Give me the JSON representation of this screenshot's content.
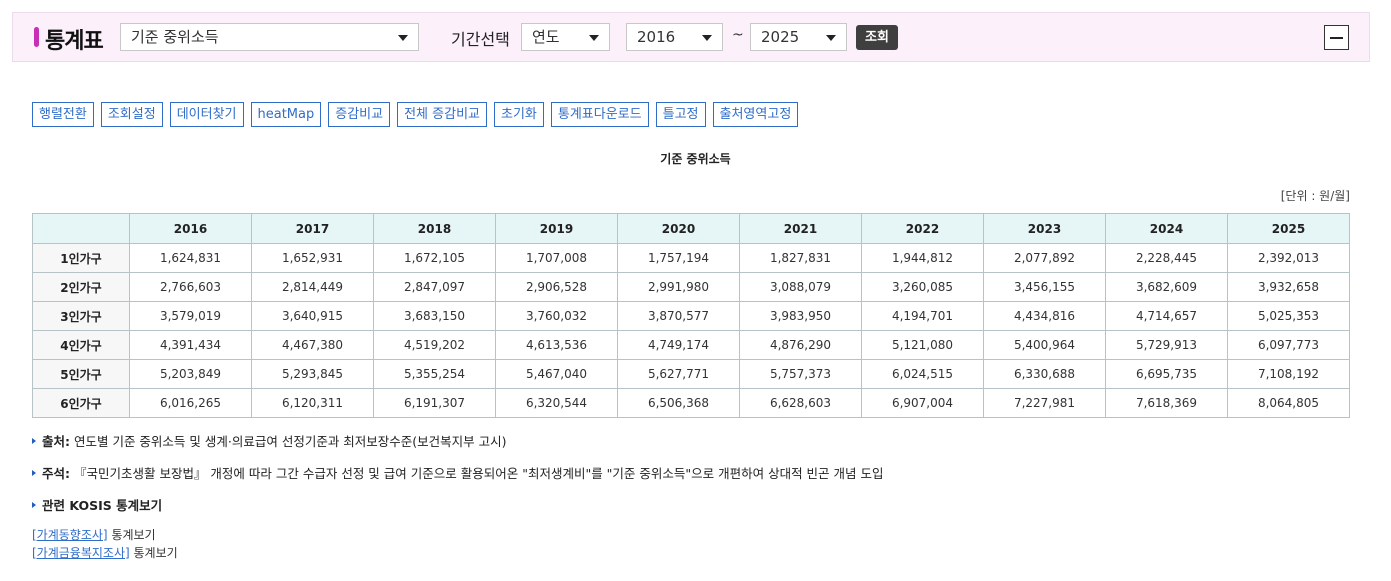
{
  "header": {
    "title": "통계표",
    "stat_select": "기준 중위소득",
    "period_label": "기간선택",
    "unit_select": "연도",
    "from_year": "2016",
    "tilde": "~",
    "to_year": "2025",
    "search_label": "조회",
    "accent_color": "#c62fb6"
  },
  "toolbar": [
    "행렬전환",
    "조회설정",
    "데이터찾기",
    "heatMap",
    "증감비교",
    "전체 증감비교",
    "초기화",
    "통계표다운로드",
    "틀고정",
    "출처영역고정"
  ],
  "table": {
    "title": "기준 중위소득",
    "unit": "[단위 : 원/월]",
    "columns": [
      "2016",
      "2017",
      "2018",
      "2019",
      "2020",
      "2021",
      "2022",
      "2023",
      "2024",
      "2025"
    ],
    "rows": [
      {
        "label": "1인가구",
        "values": [
          "1,624,831",
          "1,652,931",
          "1,672,105",
          "1,707,008",
          "1,757,194",
          "1,827,831",
          "1,944,812",
          "2,077,892",
          "2,228,445",
          "2,392,013"
        ]
      },
      {
        "label": "2인가구",
        "values": [
          "2,766,603",
          "2,814,449",
          "2,847,097",
          "2,906,528",
          "2,991,980",
          "3,088,079",
          "3,260,085",
          "3,456,155",
          "3,682,609",
          "3,932,658"
        ]
      },
      {
        "label": "3인가구",
        "values": [
          "3,579,019",
          "3,640,915",
          "3,683,150",
          "3,760,032",
          "3,870,577",
          "3,983,950",
          "4,194,701",
          "4,434,816",
          "4,714,657",
          "5,025,353"
        ]
      },
      {
        "label": "4인가구",
        "values": [
          "4,391,434",
          "4,467,380",
          "4,519,202",
          "4,613,536",
          "4,749,174",
          "4,876,290",
          "5,121,080",
          "5,400,964",
          "5,729,913",
          "6,097,773"
        ]
      },
      {
        "label": "5인가구",
        "values": [
          "5,203,849",
          "5,293,845",
          "5,355,254",
          "5,467,040",
          "5,627,771",
          "5,757,373",
          "6,024,515",
          "6,330,688",
          "6,695,735",
          "7,108,192"
        ]
      },
      {
        "label": "6인가구",
        "values": [
          "6,016,265",
          "6,120,311",
          "6,191,307",
          "6,320,544",
          "6,506,368",
          "6,628,603",
          "6,907,004",
          "7,227,981",
          "7,618,369",
          "8,064,805"
        ]
      }
    ]
  },
  "notes": {
    "source_label": "출처:",
    "source_text": "연도별 기준 중위소득 및 생계·의료급여 선정기준과 최저보장수준(보건복지부 고시)",
    "remark_label": "주석:",
    "remark_text": "『국민기초생활 보장법』 개정에 따라 그간 수급자 선정 및 급여 기준으로 활용되어온 \"최저생계비\"를 \"기준 중위소득\"으로 개편하여 상대적 빈곤 개념 도입",
    "related_label": "관련 KOSIS 통계보기",
    "links": [
      {
        "link": "[가계동향조사]",
        "suffix": "통계보기"
      },
      {
        "link": "[가계금융복지조사]",
        "suffix": "통계보기"
      }
    ]
  }
}
